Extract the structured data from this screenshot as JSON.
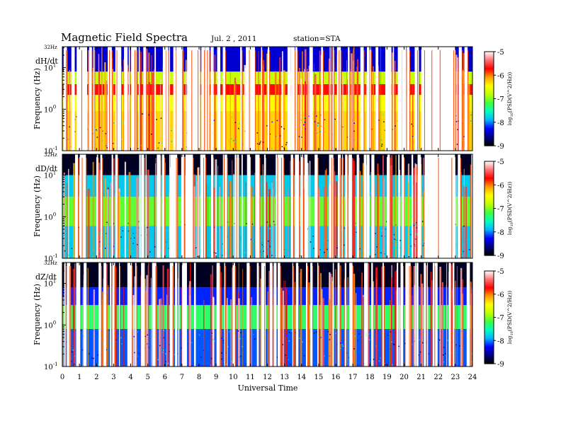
{
  "header": {
    "title": "Magnetic  Field  Spectra",
    "date": "Jul.  2  , 2011",
    "station": "station=STA"
  },
  "chart_data": {
    "type": "heatmap",
    "title": "Magnetic  Field  Spectra",
    "xlabel": "Universal Time",
    "x_ticks": [
      "0",
      "1",
      "2",
      "3",
      "4",
      "5",
      "6",
      "7",
      "8",
      "9",
      "10",
      "11",
      "12",
      "13",
      "14",
      "15",
      "16",
      "17",
      "18",
      "19",
      "20",
      "21",
      "22",
      "23",
      "24"
    ],
    "xlim": [
      0,
      24
    ],
    "y_scale": "log",
    "ylim_hz": [
      0.1,
      32
    ],
    "colorbar": {
      "label": "log10(PSD(V^2/Hz))",
      "label_text": "log",
      "label_sub": "10",
      "label_rest": "(PSD(V^2/Hz))",
      "range": [
        -9,
        -5
      ],
      "ticks": [
        "-5",
        "-6",
        "-7",
        "-8",
        "-9"
      ],
      "colormap": [
        "#000000",
        "#000080",
        "#0000ff",
        "#00b4ff",
        "#00ffc0",
        "#40ff40",
        "#c0ff00",
        "#ffff00",
        "#ffa000",
        "#ff0000",
        "#ff7070",
        "#ffffff"
      ]
    },
    "panels": [
      {
        "name": "dH/dt",
        "ylabel": "Frequency  (Hz)",
        "top_label": "32Hz",
        "y_ticks": [
          {
            "value": 10,
            "base": "10",
            "exp": "1"
          },
          {
            "value": 1,
            "base": "10",
            "exp": "0"
          },
          {
            "value": 0.1,
            "base": "10",
            "exp": "-1"
          }
        ],
        "bands": [
          {
            "freq": [
              8,
              32
            ],
            "level": -8.4
          },
          {
            "freq": [
              4,
              8
            ],
            "level": -6.8
          },
          {
            "freq": [
              2.2,
              4
            ],
            "level": -5.7
          },
          {
            "freq": [
              0.9,
              2.2
            ],
            "level": -6.5
          },
          {
            "freq": [
              0.1,
              0.9
            ],
            "level": -6.3
          }
        ],
        "gaps_ut": [
          [
            1.0,
            1.45
          ],
          [
            3.1,
            3.45
          ],
          [
            7.3,
            7.8
          ],
          [
            21.0,
            22.9
          ]
        ]
      },
      {
        "name": "dD/dt",
        "ylabel": "Frequency  (Hz)",
        "top_label": "32Hz",
        "y_ticks": [
          {
            "value": 10,
            "base": "10",
            "exp": "1"
          },
          {
            "value": 1,
            "base": "10",
            "exp": "0"
          },
          {
            "value": 0.1,
            "base": "10",
            "exp": "-1"
          }
        ],
        "bands": [
          {
            "freq": [
              10,
              32
            ],
            "level": -8.9
          },
          {
            "freq": [
              3,
              10
            ],
            "level": -7.8
          },
          {
            "freq": [
              0.6,
              3
            ],
            "level": -7.1
          },
          {
            "freq": [
              0.1,
              0.6
            ],
            "level": -7.8
          }
        ],
        "gaps_ut": [
          [
            1.0,
            1.3
          ],
          [
            7.2,
            7.6
          ],
          [
            21.2,
            23.0
          ]
        ]
      },
      {
        "name": "dZ/dt",
        "ylabel": "Frequency  (Hz)",
        "top_label": "32Hz",
        "y_ticks": [
          {
            "value": 10,
            "base": "10",
            "exp": "1"
          },
          {
            "value": 1,
            "base": "10",
            "exp": "0"
          },
          {
            "value": 0.1,
            "base": "10",
            "exp": "-1"
          }
        ],
        "bands": [
          {
            "freq": [
              8,
              32
            ],
            "level": -8.9
          },
          {
            "freq": [
              3,
              8
            ],
            "level": -8.2
          },
          {
            "freq": [
              0.8,
              3
            ],
            "level": -7.3
          },
          {
            "freq": [
              0.1,
              0.8
            ],
            "level": -8.1
          }
        ],
        "gaps_ut": [
          [
            7.0,
            7.2
          ],
          [
            11.7,
            11.9
          ]
        ]
      }
    ]
  }
}
